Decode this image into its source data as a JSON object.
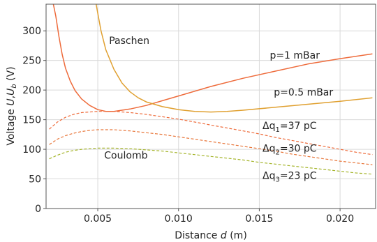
{
  "chart_data": {
    "type": "line",
    "xlabel_parts": {
      "pre": "Distance ",
      "var": "d",
      "post": " (m)"
    },
    "ylabel_parts": {
      "pre": "Voltage ",
      "u": "U",
      "sep": ",",
      "ub": "U",
      "sub": "b",
      "post": " (V)"
    },
    "xlim": [
      0.0018,
      0.0222
    ],
    "ylim": [
      0,
      345
    ],
    "xticks": [
      0.005,
      0.01,
      0.015,
      0.02
    ],
    "xtick_labels": [
      "0.005",
      "0.010",
      "0.015",
      "0.020"
    ],
    "yticks": [
      0,
      50,
      100,
      150,
      200,
      250,
      300
    ],
    "ytick_labels": [
      "0",
      "50",
      "100",
      "150",
      "200",
      "250",
      "300"
    ],
    "grid": true,
    "legend": "none",
    "series": [
      {
        "color": "#ee6b3b",
        "dash": "solid",
        "x": [
          0.00225,
          0.0024,
          0.0026,
          0.0028,
          0.003,
          0.0033,
          0.0036,
          0.004,
          0.0045,
          0.005,
          0.0055,
          0.006,
          0.007,
          0.008,
          0.009,
          0.01,
          0.012,
          0.014,
          0.016,
          0.018,
          0.02,
          0.022
        ],
        "y": [
          345,
          325,
          290,
          260,
          237,
          215,
          199,
          185,
          174,
          167,
          164,
          164,
          168,
          174,
          182,
          190,
          206,
          220,
          232,
          244,
          253,
          261
        ]
      },
      {
        "color": "#e0a030",
        "dash": "solid",
        "x": [
          0.0049,
          0.005,
          0.0052,
          0.0055,
          0.006,
          0.0065,
          0.007,
          0.0075,
          0.008,
          0.009,
          0.01,
          0.011,
          0.012,
          0.013,
          0.014,
          0.016,
          0.018,
          0.02,
          0.022
        ],
        "y": [
          345,
          330,
          300,
          268,
          235,
          212,
          197,
          187,
          180,
          172,
          167,
          164,
          163,
          164,
          166,
          171,
          176,
          181,
          187
        ]
      },
      {
        "color": "#ee6b3b",
        "dash": "dashed",
        "x": [
          0.002,
          0.0025,
          0.003,
          0.0035,
          0.004,
          0.0045,
          0.005,
          0.006,
          0.007,
          0.008,
          0.009,
          0.01,
          0.011,
          0.012,
          0.013,
          0.014,
          0.015,
          0.016,
          0.017,
          0.018,
          0.019,
          0.02,
          0.021,
          0.022
        ],
        "y": [
          134,
          146,
          154,
          159,
          162,
          163,
          164,
          164,
          162,
          159,
          155,
          151,
          146,
          141,
          136,
          131,
          126,
          120,
          115,
          110,
          105,
          100,
          95,
          91
        ]
      },
      {
        "color": "#e8763a",
        "dash": "dashed",
        "x": [
          0.002,
          0.0025,
          0.003,
          0.0035,
          0.004,
          0.0045,
          0.005,
          0.006,
          0.007,
          0.008,
          0.009,
          0.01,
          0.011,
          0.012,
          0.013,
          0.014,
          0.015,
          0.016,
          0.017,
          0.018,
          0.019,
          0.02,
          0.021,
          0.022
        ],
        "y": [
          108,
          117,
          123,
          127,
          130,
          132,
          133,
          133,
          131,
          128,
          125,
          121,
          117,
          113,
          109,
          105,
          101,
          97,
          92,
          88,
          84,
          80,
          77,
          74
        ]
      },
      {
        "color": "#a5b52c",
        "dash": "dashed",
        "x": [
          0.002,
          0.0025,
          0.003,
          0.0035,
          0.004,
          0.0045,
          0.005,
          0.006,
          0.007,
          0.008,
          0.009,
          0.01,
          0.011,
          0.012,
          0.013,
          0.014,
          0.015,
          0.016,
          0.017,
          0.018,
          0.019,
          0.02,
          0.021,
          0.022
        ],
        "y": [
          84,
          90,
          95,
          98,
          100,
          101,
          102,
          102,
          101,
          99,
          97,
          94,
          91,
          88,
          85,
          82,
          78,
          75,
          72,
          69,
          66,
          63,
          60,
          58
        ]
      }
    ],
    "annotations": [
      {
        "kind": "plain",
        "text": "Paschen",
        "x": 0.0057,
        "y": 278
      },
      {
        "kind": "plain",
        "text": "Coulomb",
        "x": 0.0054,
        "y": 84
      },
      {
        "kind": "plain",
        "text": "p=1 mBar",
        "x": 0.01565,
        "y": 253
      },
      {
        "kind": "plain",
        "text": "p=0.5 mBar",
        "x": 0.0159,
        "y": 191
      },
      {
        "kind": "dq",
        "pre": "Δq",
        "sub": "1",
        "post": "=37 pC",
        "x": 0.0152,
        "y": 134
      },
      {
        "kind": "dq",
        "pre": "Δq",
        "sub": "2",
        "post": "=30 pC",
        "x": 0.0152,
        "y": 96
      },
      {
        "kind": "dq",
        "pre": "Δq",
        "sub": "3",
        "post": "=23 pC",
        "x": 0.0152,
        "y": 50
      }
    ]
  }
}
